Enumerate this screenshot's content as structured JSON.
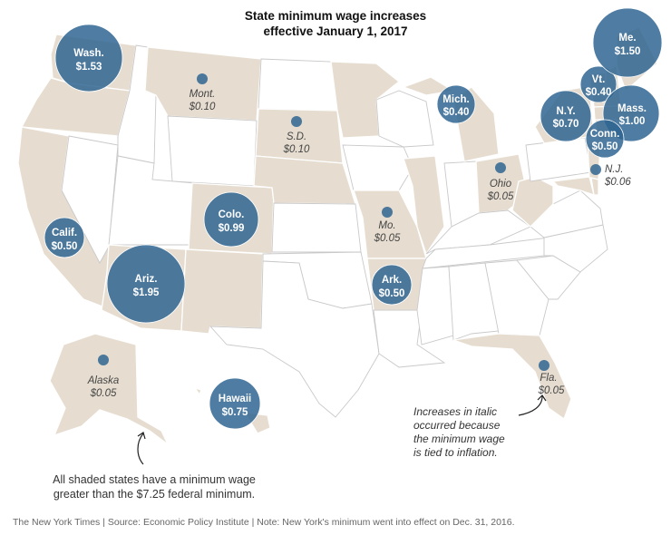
{
  "title": {
    "line1": "State minimum wage increases",
    "line2": "effective January 1, 2017"
  },
  "colors": {
    "shaded_state": "#e6ddd0",
    "plain_state": "#ffffff",
    "bubble": "#2f6592",
    "state_border": "#c9c9c9"
  },
  "legend": {
    "meaning": "Bubble size proportional to minimum wage increase; shaded states have a minimum wage above the federal minimum"
  },
  "increases": [
    {
      "state": "Wash.",
      "amount": "$1.53",
      "style": "bubble"
    },
    {
      "state": "Mont.",
      "amount": "$0.10",
      "style": "italic"
    },
    {
      "state": "S.D.",
      "amount": "$0.10",
      "style": "italic"
    },
    {
      "state": "Colo.",
      "amount": "$0.99",
      "style": "bubble"
    },
    {
      "state": "Calif.",
      "amount": "$0.50",
      "style": "bubble"
    },
    {
      "state": "Ariz.",
      "amount": "$1.95",
      "style": "bubble"
    },
    {
      "state": "Mo.",
      "amount": "$0.05",
      "style": "italic"
    },
    {
      "state": "Ark.",
      "amount": "$0.50",
      "style": "bubble"
    },
    {
      "state": "Mich.",
      "amount": "$0.40",
      "style": "bubble"
    },
    {
      "state": "Ohio",
      "amount": "$0.05",
      "style": "italic"
    },
    {
      "state": "N.Y.",
      "amount": "$0.70",
      "style": "bubble"
    },
    {
      "state": "Vt.",
      "amount": "$0.40",
      "style": "bubble"
    },
    {
      "state": "Me.",
      "amount": "$1.50",
      "style": "bubble"
    },
    {
      "state": "Mass.",
      "amount": "$1.00",
      "style": "bubble"
    },
    {
      "state": "Conn.",
      "amount": "$0.50",
      "style": "bubble"
    },
    {
      "state": "N.J.",
      "amount": "$0.06",
      "style": "italic"
    },
    {
      "state": "Fla.",
      "amount": "$0.05",
      "style": "italic"
    },
    {
      "state": "Alaska",
      "amount": "$0.05",
      "style": "italic"
    },
    {
      "state": "Hawaii",
      "amount": "$0.75",
      "style": "bubble"
    }
  ],
  "notes": {
    "italic": [
      "Increases in italic",
      "occurred because",
      "the minimum wage",
      "is tied to inflation."
    ],
    "shaded": [
      "All shaded states have a minimum wage",
      "greater than the $7.25 federal minimum."
    ]
  },
  "footer": "The New York Times  |  Source: Economic Policy Institute | Note: New York's minimum went into effect on Dec. 31, 2016."
}
